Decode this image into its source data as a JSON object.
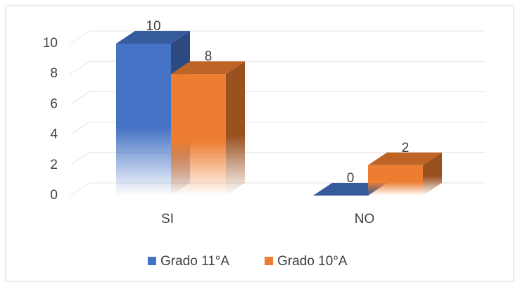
{
  "chart_data": {
    "type": "bar3d",
    "categories": [
      "SI",
      "NO"
    ],
    "series": [
      {
        "name": "Grado 11°A",
        "color": "#4472c4",
        "values": [
          10,
          0
        ]
      },
      {
        "name": "Grado 10°A",
        "color": "#ed7d31",
        "values": [
          8,
          2
        ]
      }
    ],
    "ylim": [
      0,
      10
    ],
    "yticks": [
      0,
      2,
      4,
      6,
      8,
      10
    ],
    "grid": true,
    "legend": "bottom"
  }
}
